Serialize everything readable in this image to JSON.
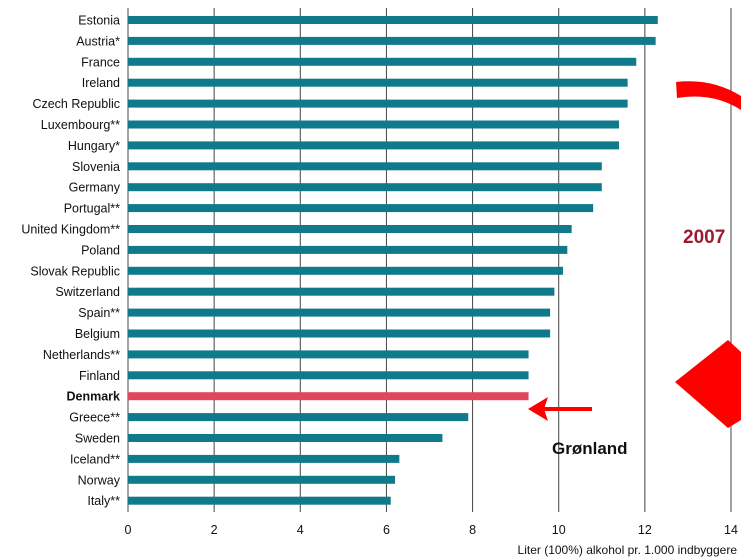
{
  "chart_data": {
    "type": "bar",
    "orientation": "horizontal",
    "categories": [
      "Estonia",
      "Austria*",
      "France",
      "Ireland",
      "Czech Republic",
      "Luxembourg**",
      "Hungary*",
      "Slovenia",
      "Germany",
      "Portugal**",
      "United Kingdom**",
      "Poland",
      "Slovak Republic",
      "Switzerland",
      "Spain**",
      "Belgium",
      "Netherlands**",
      "Finland",
      "Denmark",
      "Greece**",
      "Sweden",
      "Iceland**",
      "Norway",
      "Italy**"
    ],
    "values": [
      12.3,
      12.25,
      11.8,
      11.6,
      11.6,
      11.4,
      11.4,
      11.0,
      11.0,
      10.8,
      10.3,
      10.2,
      10.1,
      9.9,
      9.8,
      9.8,
      9.3,
      9.3,
      9.3,
      7.9,
      7.3,
      6.3,
      6.2,
      6.1
    ],
    "highlight": "Denmark",
    "xlabel": "Liter (100%) alkohol pr. 1.000 indbyggere",
    "ylabel": "",
    "xlim": [
      0,
      14
    ],
    "xticks": [
      0,
      2,
      4,
      6,
      8,
      10,
      12,
      14
    ],
    "grid": true,
    "colors": {
      "bar": "#0f7a8a",
      "highlight": "#e0475c",
      "arrow": "#ff0000",
      "year": "#9b1b30"
    },
    "annotations": {
      "year": "2007",
      "greenland": "Grønland"
    }
  }
}
